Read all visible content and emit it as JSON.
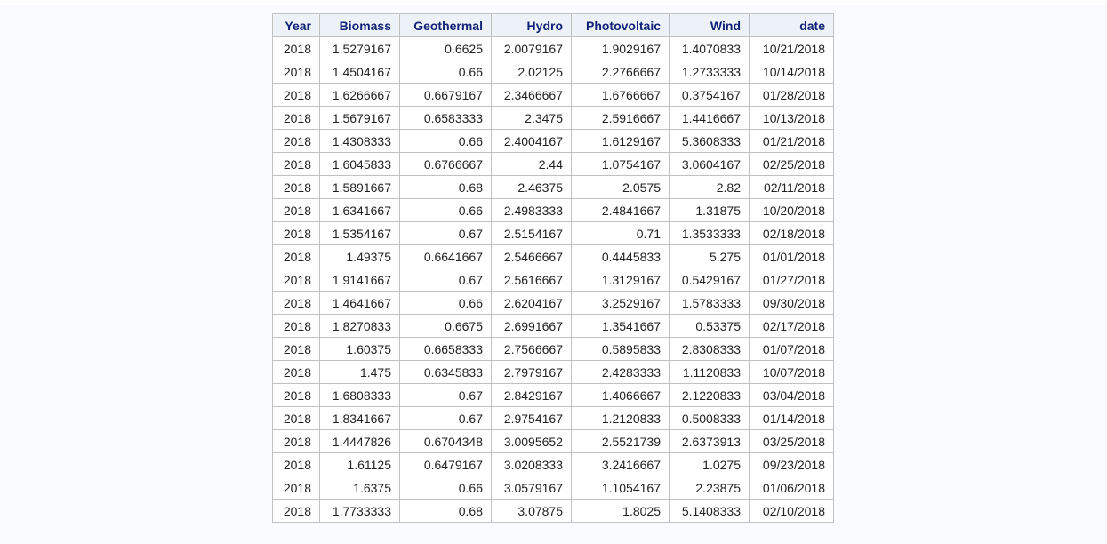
{
  "table": {
    "columns": [
      "Year",
      "Biomass",
      "Geothermal",
      "Hydro",
      "Photovoltaic",
      "Wind",
      "date"
    ],
    "rows": [
      [
        "2018",
        "1.5279167",
        "0.6625",
        "2.0079167",
        "1.9029167",
        "1.4070833",
        "10/21/2018"
      ],
      [
        "2018",
        "1.4504167",
        "0.66",
        "2.02125",
        "2.2766667",
        "1.2733333",
        "10/14/2018"
      ],
      [
        "2018",
        "1.6266667",
        "0.6679167",
        "2.3466667",
        "1.6766667",
        "0.3754167",
        "01/28/2018"
      ],
      [
        "2018",
        "1.5679167",
        "0.6583333",
        "2.3475",
        "2.5916667",
        "1.4416667",
        "10/13/2018"
      ],
      [
        "2018",
        "1.4308333",
        "0.66",
        "2.4004167",
        "1.6129167",
        "5.3608333",
        "01/21/2018"
      ],
      [
        "2018",
        "1.6045833",
        "0.6766667",
        "2.44",
        "1.0754167",
        "3.0604167",
        "02/25/2018"
      ],
      [
        "2018",
        "1.5891667",
        "0.68",
        "2.46375",
        "2.0575",
        "2.82",
        "02/11/2018"
      ],
      [
        "2018",
        "1.6341667",
        "0.66",
        "2.4983333",
        "2.4841667",
        "1.31875",
        "10/20/2018"
      ],
      [
        "2018",
        "1.5354167",
        "0.67",
        "2.5154167",
        "0.71",
        "1.3533333",
        "02/18/2018"
      ],
      [
        "2018",
        "1.49375",
        "0.6641667",
        "2.5466667",
        "0.4445833",
        "5.275",
        "01/01/2018"
      ],
      [
        "2018",
        "1.9141667",
        "0.67",
        "2.5616667",
        "1.3129167",
        "0.5429167",
        "01/27/2018"
      ],
      [
        "2018",
        "1.4641667",
        "0.66",
        "2.6204167",
        "3.2529167",
        "1.5783333",
        "09/30/2018"
      ],
      [
        "2018",
        "1.8270833",
        "0.6675",
        "2.6991667",
        "1.3541667",
        "0.53375",
        "02/17/2018"
      ],
      [
        "2018",
        "1.60375",
        "0.6658333",
        "2.7566667",
        "0.5895833",
        "2.8308333",
        "01/07/2018"
      ],
      [
        "2018",
        "1.475",
        "0.6345833",
        "2.7979167",
        "2.4283333",
        "1.1120833",
        "10/07/2018"
      ],
      [
        "2018",
        "1.6808333",
        "0.67",
        "2.8429167",
        "1.4066667",
        "2.1220833",
        "03/04/2018"
      ],
      [
        "2018",
        "1.8341667",
        "0.67",
        "2.9754167",
        "1.2120833",
        "0.5008333",
        "01/14/2018"
      ],
      [
        "2018",
        "1.4447826",
        "0.6704348",
        "3.0095652",
        "2.5521739",
        "2.6373913",
        "03/25/2018"
      ],
      [
        "2018",
        "1.61125",
        "0.6479167",
        "3.0208333",
        "3.2416667",
        "1.0275",
        "09/23/2018"
      ],
      [
        "2018",
        "1.6375",
        "0.66",
        "3.0579167",
        "1.1054167",
        "2.23875",
        "01/06/2018"
      ],
      [
        "2018",
        "1.7733333",
        "0.68",
        "3.07875",
        "1.8025",
        "5.1408333",
        "02/10/2018"
      ]
    ]
  }
}
